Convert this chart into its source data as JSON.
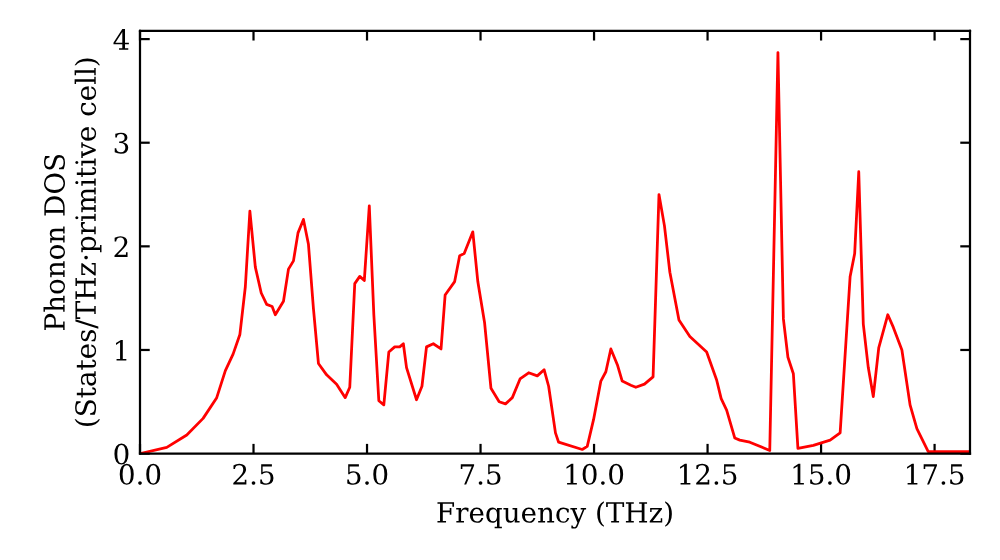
{
  "chart_data": {
    "type": "line",
    "xlabel": "Frequency (THz)",
    "ylabel": "Phonon DOS\n(States/THz·primitive cell)",
    "xlim": [
      0,
      18.28
    ],
    "ylim": [
      0,
      4.08
    ],
    "xticks": [
      {
        "value": 0,
        "label": "0.0"
      },
      {
        "value": 2.5,
        "label": "2.5"
      },
      {
        "value": 5,
        "label": "5.0"
      },
      {
        "value": 7.5,
        "label": "7.5"
      },
      {
        "value": 10,
        "label": "10.0"
      },
      {
        "value": 12.5,
        "label": "12.5"
      },
      {
        "value": 15,
        "label": "15.0"
      },
      {
        "value": 17.5,
        "label": "17.5"
      }
    ],
    "yticks": [
      0,
      1,
      2,
      3,
      4
    ],
    "grid": false,
    "legend": false,
    "series": [
      {
        "color": "#ff0000",
        "x": [
          0,
          0.59,
          1.03,
          1.39,
          1.69,
          1.88,
          2.05,
          2.2,
          2.32,
          2.42,
          2.54,
          2.67,
          2.79,
          2.91,
          2.98,
          3.16,
          3.27,
          3.38,
          3.48,
          3.6,
          3.71,
          3.82,
          3.93,
          4.11,
          4.33,
          4.52,
          4.62,
          4.73,
          4.84,
          4.94,
          5.05,
          5.15,
          5.26,
          5.37,
          5.48,
          5.61,
          5.72,
          5.8,
          5.87,
          6.09,
          6.21,
          6.31,
          6.46,
          6.63,
          6.72,
          6.93,
          7.04,
          7.14,
          7.33,
          7.44,
          7.59,
          7.73,
          7.91,
          8.05,
          8.2,
          8.37,
          8.56,
          8.75,
          8.9,
          9.0,
          9.15,
          9.22,
          9.74,
          9.85,
          9.99,
          10.15,
          10.26,
          10.37,
          10.52,
          10.62,
          10.81,
          10.92,
          11.11,
          11.3,
          11.43,
          11.55,
          11.67,
          11.87,
          12.11,
          12.48,
          12.7,
          12.8,
          12.92,
          13.1,
          13.21,
          13.43,
          13.87,
          14.05,
          14.17,
          14.27,
          14.39,
          14.49,
          14.83,
          15.2,
          15.42,
          15.64,
          15.74,
          15.83,
          15.93,
          16.04,
          16.15,
          16.27,
          16.47,
          16.59,
          16.78,
          16.96,
          17.11,
          17.36,
          18.28
        ],
        "values": [
          0,
          0.06,
          0.18,
          0.34,
          0.54,
          0.8,
          0.96,
          1.15,
          1.61,
          2.34,
          1.8,
          1.55,
          1.44,
          1.42,
          1.34,
          1.47,
          1.78,
          1.86,
          2.13,
          2.26,
          2.02,
          1.4,
          0.87,
          0.76,
          0.67,
          0.54,
          0.64,
          1.64,
          1.71,
          1.67,
          2.39,
          1.34,
          0.51,
          0.47,
          0.98,
          1.03,
          1.03,
          1.06,
          0.83,
          0.52,
          0.65,
          1.03,
          1.06,
          1.01,
          1.53,
          1.66,
          1.91,
          1.93,
          2.14,
          1.66,
          1.26,
          0.63,
          0.5,
          0.48,
          0.54,
          0.72,
          0.78,
          0.75,
          0.81,
          0.65,
          0.2,
          0.11,
          0.04,
          0.07,
          0.33,
          0.7,
          0.79,
          1.01,
          0.85,
          0.7,
          0.66,
          0.64,
          0.67,
          0.74,
          2.5,
          2.2,
          1.75,
          1.29,
          1.13,
          0.98,
          0.71,
          0.53,
          0.42,
          0.15,
          0.13,
          0.11,
          0.03,
          3.87,
          1.3,
          0.93,
          0.77,
          0.05,
          0.08,
          0.13,
          0.2,
          1.71,
          1.93,
          2.72,
          1.25,
          0.83,
          0.55,
          1.02,
          1.34,
          1.22,
          1.0,
          0.47,
          0.24,
          0.02,
          0.02
        ]
      }
    ]
  }
}
